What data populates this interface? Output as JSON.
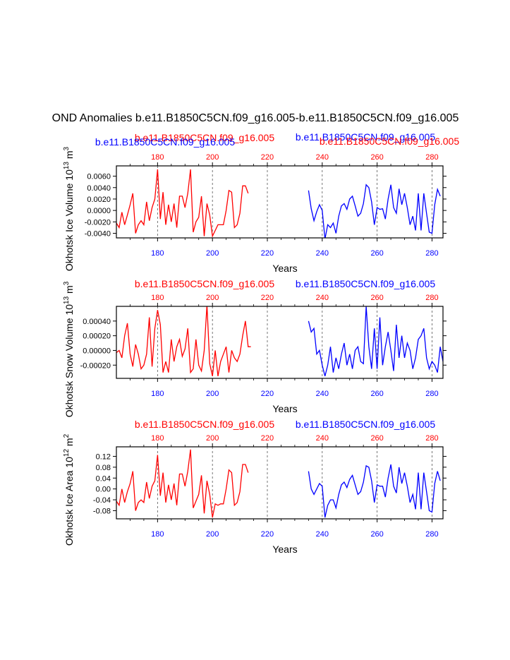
{
  "title": "OND Anomalies b.e11.B1850C5CN.f09_g16.005-b.e11.B1850C5CN.f09_g16.005",
  "colors": {
    "case1": "#ff0000",
    "case2": "#0000ff",
    "axis": "#000000",
    "refline": "#555555"
  },
  "case_labels": {
    "red": "b.e11.B1850C5CN.f09_g16.005",
    "blue": "b.e11.B1850C5CN.f09_g16.005"
  },
  "chart_data": [
    {
      "type": "line",
      "ylabel": "Okhotsk Ice Volume 10^13 m^3",
      "ylabel_parts": {
        "pre": "Okhotsk Ice Volume 10",
        "exp": "13",
        "mid": " m",
        "exp2": "3"
      },
      "xlabel": "Years",
      "xlim": [
        165,
        284
      ],
      "ylim": [
        -0.0048,
        0.0078
      ],
      "x_ticks": [
        180,
        200,
        220,
        240,
        260,
        280
      ],
      "y_ticks": [
        -0.004,
        -0.002,
        0.0,
        0.002,
        0.004,
        0.006
      ],
      "y_tick_labels": [
        "-0.0040",
        "-0.0020",
        "0.0000",
        "0.0020",
        "0.0040",
        "0.0060"
      ],
      "ref_lines": [
        180,
        200,
        220,
        240,
        260,
        280
      ],
      "series": [
        {
          "color": "red",
          "x_start": 165,
          "values": [
            -0.0022,
            -0.003,
            -0.0003,
            -0.0025,
            -0.0008,
            0.001,
            0.003,
            -0.004,
            -0.0025,
            -0.0018,
            -0.0025,
            0.0015,
            -0.0018,
            0.0005,
            0.002,
            0.0072,
            -0.0015,
            0.0032,
            -0.0025,
            0.001,
            -0.002,
            0.0012,
            -0.003,
            0.0025,
            0.0025,
            0.0005,
            0.003,
            0.0072,
            -0.0038,
            -0.002,
            -0.0012,
            0.0025,
            -0.0045,
            0.0012,
            -0.0008,
            -0.0045,
            -0.0035,
            -0.0025,
            -0.0025,
            -0.0025,
            0.0,
            0.0035,
            0.0032,
            -0.003,
            -0.0025,
            -0.0005,
            0.0043,
            0.0043,
            0.003
          ]
        },
        {
          "color": "blue",
          "x_start": 235,
          "values": [
            0.0035,
            0.0003,
            -0.0018,
            -0.0002,
            0.001,
            0.0,
            -0.005,
            -0.0025,
            -0.003,
            -0.0022,
            -0.004,
            -0.001,
            0.0008,
            0.0012,
            0.0002,
            0.002,
            0.0025,
            0.0008,
            -0.001,
            -0.0005,
            0.0012,
            0.0045,
            0.004,
            0.0015,
            -0.0025,
            0.0005,
            0.0002,
            0.0003,
            -0.0015,
            0.002,
            0.0045,
            0.0005,
            -0.0005,
            0.0038,
            0.001,
            0.003,
            0.0005,
            -0.0025,
            -0.001,
            -0.0035,
            0.003,
            -0.0035,
            0.003,
            -0.0005,
            -0.0038,
            -0.004,
            0.001,
            0.0037,
            0.0025
          ]
        }
      ]
    },
    {
      "type": "line",
      "ylabel": "Okhotsk Snow Volume 10^13 m^3",
      "ylabel_parts": {
        "pre": "Okhotsk Snow Volume 10",
        "exp": "13",
        "mid": " m",
        "exp2": "3"
      },
      "xlabel": "Years",
      "xlim": [
        165,
        284
      ],
      "ylim": [
        -0.00038,
        0.0006
      ],
      "x_ticks": [
        180,
        200,
        220,
        240,
        260,
        280
      ],
      "y_ticks": [
        -0.0002,
        0.0,
        0.0002,
        0.0004
      ],
      "y_tick_labels": [
        "-0.00020",
        "0.00000",
        "0.00020",
        "0.00040"
      ],
      "ref_lines": [
        180,
        200,
        220,
        240,
        260,
        280
      ],
      "series": [
        {
          "color": "red",
          "x_start": 165,
          "values": [
            -3e-05,
            0.0,
            -0.0001,
            0.0002,
            0.00037,
            -5e-05,
            -0.00022,
            8e-05,
            -5e-05,
            -0.00025,
            -0.0002,
            -5e-05,
            0.00045,
            -0.00022,
            0.0003,
            0.00055,
            0.00035,
            -0.0003,
            -0.00015,
            -0.0003,
            0.00015,
            -0.00015,
            5e-05,
            0.00015,
            -8e-05,
            2e-05,
            0.0003,
            -0.0003,
            -0.00025,
            0.00015,
            -0.0002,
            -0.00028,
            0.0,
            0.00062,
            -0.00018,
            -0.00035,
            0.0,
            -0.00035,
            -0.00015,
            -5e-05,
            5e-05,
            -0.0003,
            0.0,
            -0.0001,
            -0.00015,
            -5e-05,
            0.0002,
            0.0004,
            5e-05,
            5e-05
          ]
        },
        {
          "color": "blue",
          "x_start": 235,
          "values": [
            0.0004,
            0.00025,
            0.0003,
            -5e-05,
            0.0,
            -0.0002,
            -0.00035,
            -0.0002,
            5e-05,
            -0.0003,
            -0.0001,
            -0.00025,
            -5e-05,
            0.0001,
            -0.0002,
            -5e-05,
            -0.00025,
            0.0,
            5e-05,
            -0.00015,
            -0.00018,
            0.0006,
            5e-05,
            -0.00025,
            0.0003,
            -0.00025,
            0.00045,
            -0.0002,
            5e-05,
            0.00025,
            0.0,
            -0.00028,
            0.00035,
            -0.0001,
            0.0002,
            -0.0001,
            0.0001,
            0.0,
            -0.00025,
            -0.0001,
            0.00015,
            0.0002,
            0.0003,
            -0.0001,
            -0.00025,
            -0.00015,
            -0.0002,
            -0.0003,
            5e-05,
            -0.00015
          ]
        }
      ]
    },
    {
      "type": "line",
      "ylabel": "Okhotsk Ice Area 10^12 m^2",
      "ylabel_parts": {
        "pre": "Okhotsk Ice Area 10",
        "exp": "12",
        "mid": " m",
        "exp2": "2"
      },
      "xlabel": "Years",
      "xlim": [
        165,
        284
      ],
      "ylim": [
        -0.11,
        0.155
      ],
      "x_ticks": [
        180,
        200,
        220,
        240,
        260,
        280
      ],
      "y_ticks": [
        -0.08,
        -0.04,
        0.0,
        0.04,
        0.08,
        0.12
      ],
      "y_tick_labels": [
        "-0.08",
        "-0.04",
        "0.00",
        "0.04",
        "0.08",
        "0.12"
      ],
      "ref_lines": [
        180,
        200,
        220,
        240,
        260,
        280
      ],
      "series": [
        {
          "color": "red",
          "x_start": 165,
          "values": [
            -0.045,
            -0.06,
            0.0,
            -0.05,
            -0.01,
            0.02,
            0.065,
            -0.08,
            -0.05,
            -0.04,
            -0.05,
            0.025,
            -0.035,
            0.01,
            0.03,
            0.125,
            -0.025,
            0.06,
            -0.05,
            0.015,
            -0.04,
            0.02,
            -0.06,
            0.055,
            0.055,
            0.01,
            0.065,
            0.145,
            -0.07,
            -0.045,
            -0.02,
            0.05,
            -0.09,
            0.03,
            -0.02,
            -0.105,
            -0.055,
            -0.06,
            -0.055,
            -0.055,
            0.0,
            0.07,
            0.06,
            -0.06,
            -0.05,
            -0.01,
            0.09,
            0.09,
            0.06
          ]
        },
        {
          "color": "blue",
          "x_start": 235,
          "values": [
            0.065,
            0.0,
            -0.02,
            0.0,
            0.02,
            0.01,
            -0.105,
            -0.06,
            -0.04,
            -0.04,
            -0.07,
            -0.02,
            0.015,
            0.025,
            0.005,
            0.035,
            0.05,
            0.015,
            -0.02,
            -0.01,
            0.025,
            0.085,
            0.08,
            0.03,
            -0.05,
            0.015,
            0.01,
            0.01,
            -0.03,
            0.04,
            0.09,
            0.01,
            -0.015,
            0.08,
            0.02,
            0.06,
            0.01,
            -0.05,
            -0.02,
            -0.075,
            0.06,
            -0.075,
            0.06,
            -0.01,
            -0.08,
            -0.085,
            0.02,
            0.065,
            0.03
          ]
        }
      ]
    }
  ]
}
